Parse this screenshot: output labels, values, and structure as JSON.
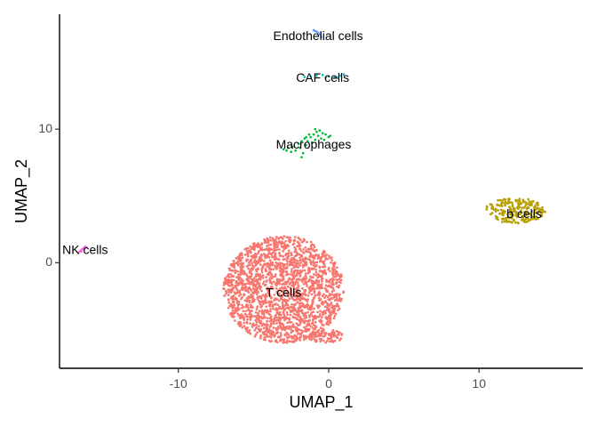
{
  "chart_data": {
    "type": "scatter",
    "title": "",
    "xlabel": "UMAP_1",
    "ylabel": "UMAP_2",
    "xlim": [
      -17.9,
      16.9
    ],
    "ylim": [
      -7.9,
      18.6
    ],
    "x_ticks": [
      -10,
      0,
      10
    ],
    "y_ticks": [
      0,
      10
    ],
    "x_tick_labels": [
      "-10",
      "0",
      "10"
    ],
    "y_tick_labels": [
      "0",
      "10"
    ],
    "grid": false,
    "legend": "none",
    "clusters": [
      {
        "name": "Endothelial cells",
        "color": "#619CFF",
        "label_pos": [
          -0.7,
          16.9
        ],
        "points": [
          [
            -1.0,
            17.4
          ],
          [
            -0.8,
            17.3
          ],
          [
            -0.6,
            17.1
          ],
          [
            -0.5,
            16.9
          ],
          [
            -0.7,
            17.2
          ],
          [
            -0.9,
            17.35
          ]
        ]
      },
      {
        "name": "CAF cells",
        "color": "#00BFC4",
        "label_pos": [
          -0.4,
          13.8
        ],
        "points": [
          [
            -1.6,
            13.9
          ],
          [
            -1.2,
            13.95
          ],
          [
            -0.8,
            14.0
          ],
          [
            -0.4,
            14.05
          ],
          [
            0.0,
            13.95
          ],
          [
            0.4,
            13.9
          ],
          [
            0.8,
            14.0
          ],
          [
            1.0,
            14.1
          ],
          [
            -0.2,
            13.85
          ],
          [
            0.6,
            13.85
          ]
        ]
      },
      {
        "name": "Macrophages",
        "color": "#00BA38",
        "label_pos": [
          -1.0,
          8.8
        ],
        "points": [
          [
            -3.0,
            8.5
          ],
          [
            -2.7,
            8.6
          ],
          [
            -2.4,
            8.7
          ],
          [
            -2.0,
            8.9
          ],
          [
            -1.8,
            9.1
          ],
          [
            -1.6,
            9.3
          ],
          [
            -1.4,
            9.1
          ],
          [
            -1.2,
            9.4
          ],
          [
            -1.0,
            9.6
          ],
          [
            -0.8,
            9.8
          ],
          [
            -0.6,
            9.9
          ],
          [
            -0.4,
            9.7
          ],
          [
            -0.2,
            9.6
          ],
          [
            0.0,
            9.4
          ],
          [
            -0.7,
            9.5
          ],
          [
            -1.1,
            9.0
          ],
          [
            -1.5,
            8.8
          ],
          [
            -1.9,
            8.6
          ],
          [
            -2.2,
            8.4
          ],
          [
            -2.5,
            8.3
          ],
          [
            -1.7,
            8.2
          ],
          [
            -1.8,
            7.9
          ],
          [
            -0.3,
            9.2
          ],
          [
            -0.5,
            9.3
          ],
          [
            -0.9,
            9.2
          ],
          [
            -1.3,
            9.6
          ],
          [
            -0.9,
            10.0
          ],
          [
            0.1,
            9.5
          ],
          [
            -2.8,
            8.4
          ],
          [
            -1.5,
            9.4
          ]
        ]
      },
      {
        "name": "b cells",
        "color": "#B79F00",
        "label_pos": [
          13.0,
          3.6
        ],
        "center": [
          12.4,
          3.9
        ],
        "spread": [
          2.0,
          0.95
        ],
        "n": 220
      },
      {
        "name": "NK cells",
        "color": "#F564E3",
        "label_pos": [
          -16.2,
          0.9
        ],
        "points": [
          [
            -16.6,
            0.8
          ],
          [
            -16.5,
            0.9
          ],
          [
            -16.4,
            1.0
          ],
          [
            -16.3,
            1.1
          ],
          [
            -16.2,
            1.2
          ],
          [
            -16.1,
            1.15
          ],
          [
            -16.45,
            0.85
          ],
          [
            -16.25,
            1.05
          ]
        ]
      },
      {
        "name": "T cells",
        "color": "#F8766D",
        "label_pos": [
          -3.0,
          -2.3
        ],
        "center": [
          -3.0,
          -2.0
        ],
        "spread": [
          4.0,
          4.0
        ],
        "n": 2000
      }
    ]
  }
}
